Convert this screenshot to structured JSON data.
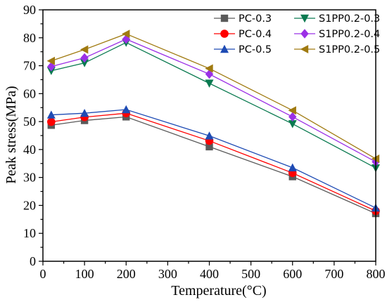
{
  "chart_data": {
    "type": "line",
    "xlabel": "Temperature(°C)",
    "ylabel": "Peak stress(MPa)",
    "xlim": [
      0,
      800
    ],
    "ylim": [
      0,
      90
    ],
    "xticks": [
      0,
      100,
      200,
      300,
      400,
      500,
      600,
      700,
      800
    ],
    "yticks": [
      0,
      10,
      20,
      30,
      40,
      50,
      60,
      70,
      80,
      90
    ],
    "grid": false,
    "legend_position": "top-right",
    "x": [
      20,
      100,
      200,
      400,
      600,
      800
    ],
    "series": [
      {
        "name": "PC-0.3",
        "color": "#5a5a5a",
        "marker": "square",
        "values": [
          48.7,
          50.4,
          51.7,
          41.0,
          30.3,
          17.1
        ]
      },
      {
        "name": "PC-0.4",
        "color": "#ff0000",
        "marker": "circle",
        "values": [
          49.9,
          51.6,
          53.0,
          43.1,
          31.6,
          18.0
        ]
      },
      {
        "name": "PC-0.5",
        "color": "#1e4bb4",
        "marker": "triangle-up",
        "values": [
          52.4,
          53.0,
          54.3,
          44.9,
          33.5,
          19.1
        ]
      },
      {
        "name": "S1PP0.2-0.3",
        "color": "#0a7a50",
        "marker": "triangle-down",
        "values": [
          68.2,
          71.0,
          78.3,
          63.7,
          49.2,
          33.4
        ]
      },
      {
        "name": "S1PP0.2-0.4",
        "color": "#9b30e6",
        "marker": "diamond",
        "values": [
          69.7,
          72.8,
          79.5,
          67.0,
          51.7,
          35.6
        ]
      },
      {
        "name": "S1PP0.2-0.5",
        "color": "#a07a10",
        "marker": "triangle-left",
        "values": [
          71.7,
          75.8,
          81.4,
          69.0,
          54.0,
          36.7
        ]
      }
    ]
  }
}
